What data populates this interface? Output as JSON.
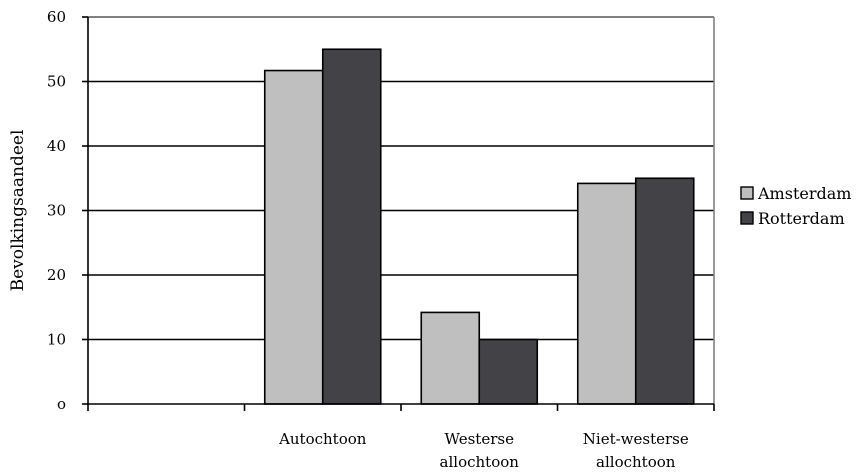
{
  "chart_data": {
    "type": "bar",
    "title": "",
    "xlabel": "",
    "ylabel": "Bevolkingsaandeel",
    "ylim": [
      0,
      60
    ],
    "yticks": [
      0,
      10,
      20,
      30,
      40,
      50,
      60
    ],
    "ytick_labels": [
      "o",
      "10",
      "20",
      "30",
      "40",
      "50",
      "60"
    ],
    "grid": true,
    "legend_position": "right",
    "categories": [
      [
        ""
      ],
      [
        "Autochtoon"
      ],
      [
        "Westerse",
        "allochtoon"
      ],
      [
        "Niet-westerse",
        "allochtoon"
      ]
    ],
    "series": [
      {
        "name": "Amsterdam",
        "color": "#bfbfbf",
        "values": [
          null,
          51.7,
          14.2,
          34.2
        ]
      },
      {
        "name": "Rotterdam",
        "color": "#434347",
        "values": [
          null,
          55.0,
          10.0,
          35.0
        ]
      }
    ]
  }
}
